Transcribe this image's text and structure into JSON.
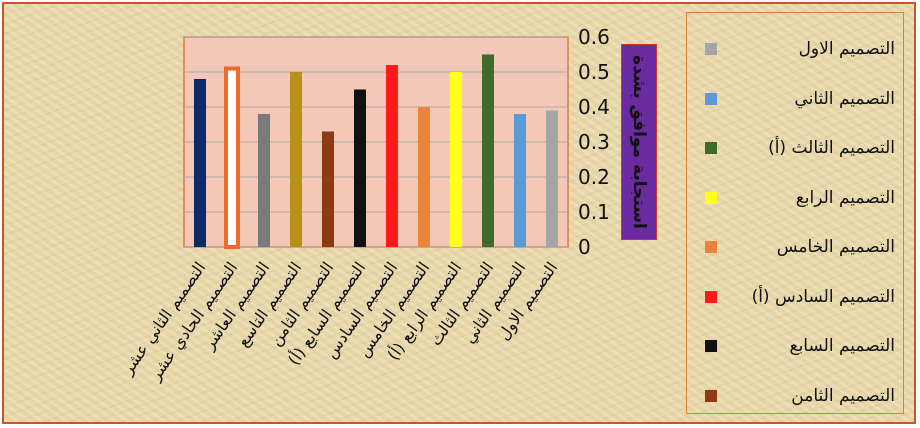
{
  "chart_data": {
    "type": "bar",
    "ylabel": "استجابة موافق بشدة",
    "ylim": [
      0,
      0.6
    ],
    "yticks": [
      "0",
      "0.1",
      "0.2",
      "0.3",
      "0.4",
      "0.5",
      "0.6"
    ],
    "grid": true,
    "legend_position": "right",
    "categories": [
      "التصميم الثاني عشر",
      "التصميم الحادي عشر",
      "التصميم العاشر",
      "التصميم التاسع",
      "التصميم الثامن",
      "التصميم السابع (أ)",
      "التصميم السادس",
      "التصميم الخامس",
      "التصميم الرابع (أ)",
      "التصميم الثالث",
      "التصميم الثاني",
      "التصميم الاول"
    ],
    "values": [
      0.48,
      0.51,
      0.38,
      0.5,
      0.33,
      0.45,
      0.52,
      0.4,
      0.5,
      0.55,
      0.38,
      0.39
    ],
    "colors": [
      "#0d2866",
      "#ffffff",
      "#7a7a7a",
      "#b89218",
      "#8b3a12",
      "#111111",
      "#ff1a1a",
      "#e8843c",
      "#ffff1a",
      "#3f6a2a",
      "#5b9bd5",
      "#a5a5a5"
    ],
    "outlined": [
      false,
      true,
      false,
      false,
      false,
      false,
      false,
      false,
      false,
      false,
      false,
      false
    ],
    "outline_color": "#ee6a2a",
    "plot_background": "#f3c8b8"
  },
  "legend": {
    "items": [
      {
        "label": "التصميم الاول",
        "color": "#a5a5a5"
      },
      {
        "label": "التصميم الثاني",
        "color": "#5b9bd5"
      },
      {
        "label": "التصميم الثالث (أ)",
        "color": "#3f6a2a"
      },
      {
        "label": "التصميم الرابع",
        "color": "#ffff1a"
      },
      {
        "label": "التصميم الخامس",
        "color": "#e8843c"
      },
      {
        "label": "التصميم السادس (أ)",
        "color": "#ff1a1a"
      },
      {
        "label": "التصميم السابع",
        "color": "#111111"
      },
      {
        "label": "التصميم الثامن",
        "color": "#8b3a12"
      }
    ]
  }
}
